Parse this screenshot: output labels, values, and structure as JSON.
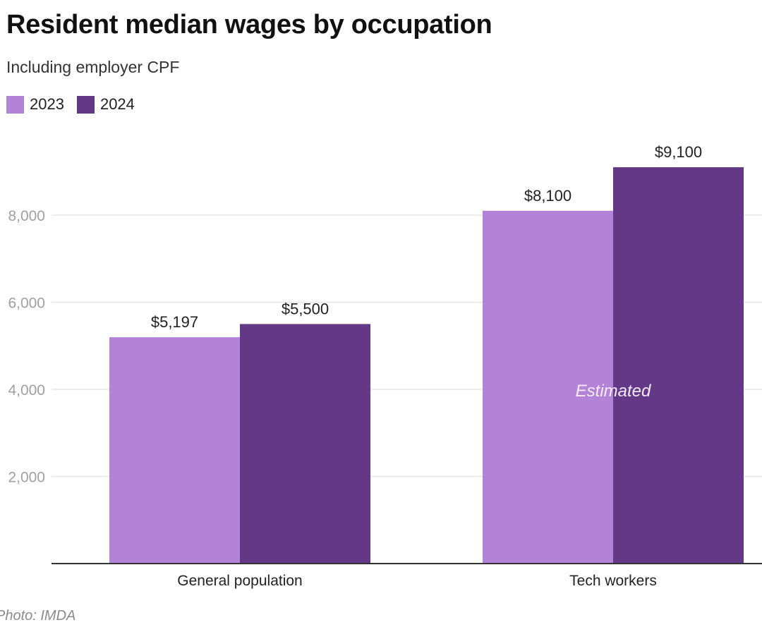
{
  "chart_data": {
    "type": "bar",
    "title": "Resident median wages by occupation",
    "subtitle": "Including employer CPF",
    "categories": [
      "General population",
      "Tech workers"
    ],
    "series": [
      {
        "name": "2023",
        "color": "#b383d8",
        "values": [
          5197,
          8100
        ],
        "labels": [
          "$5,197",
          "$8,100"
        ]
      },
      {
        "name": "2024",
        "color": "#633886",
        "values": [
          5500,
          9100
        ],
        "labels": [
          "$5,500",
          "$9,100"
        ]
      }
    ],
    "yticks": [
      2000,
      4000,
      6000,
      8000
    ],
    "ytick_labels": [
      "2,000",
      "4,000",
      "6,000",
      "8,000"
    ],
    "ylim": [
      0,
      9100
    ],
    "xlabel": "",
    "ylabel": "",
    "grid": true,
    "legend": "top-left",
    "annotation": {
      "text": "Estimated",
      "category": "Tech workers"
    },
    "source": "Photo: IMDA"
  }
}
